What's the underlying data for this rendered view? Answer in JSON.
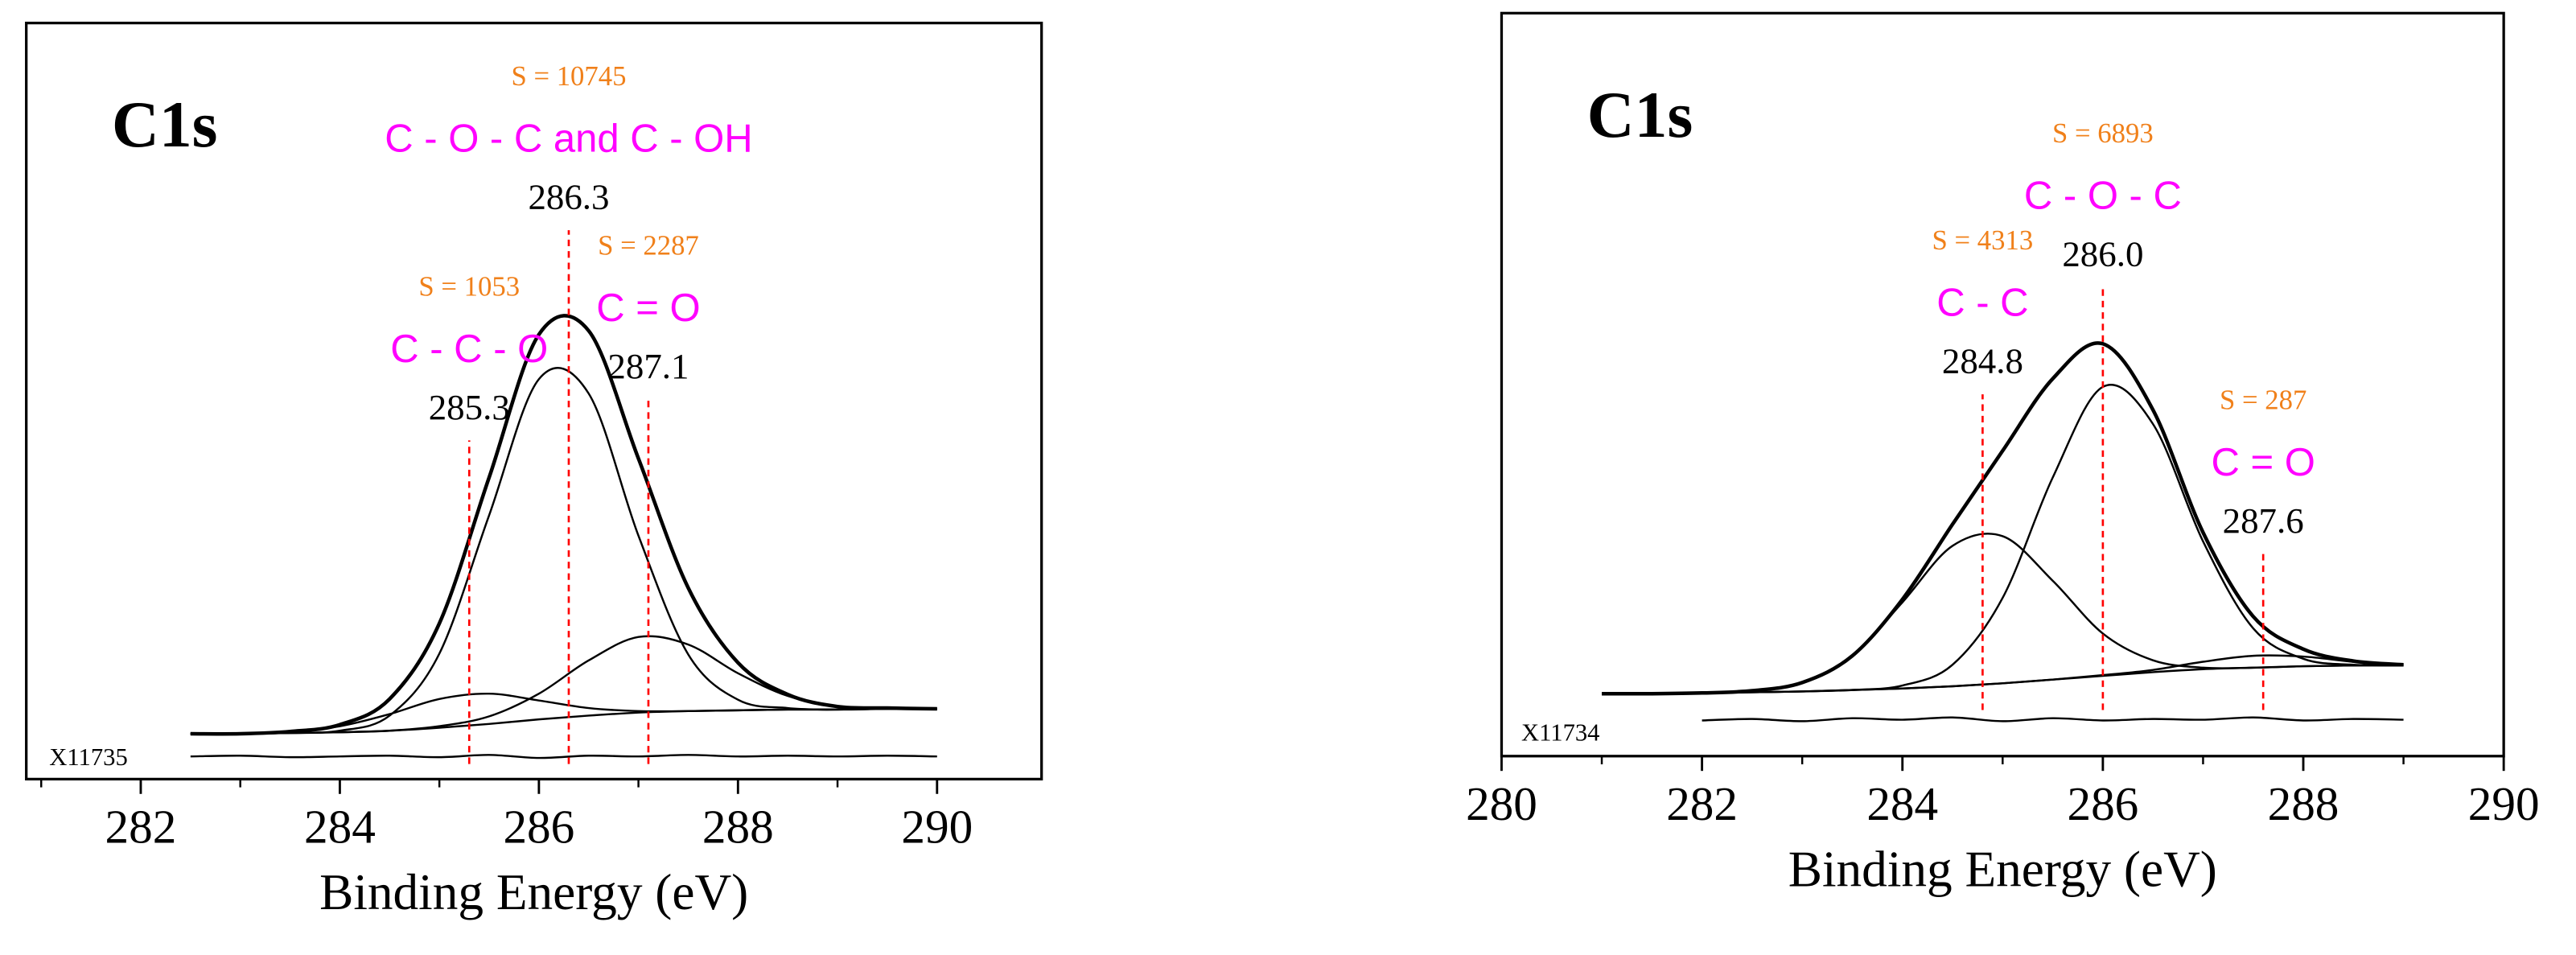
{
  "chart_data": [
    {
      "type": "line",
      "title": "C1s",
      "xlabel": "Binding Energy (eV)",
      "sample": "X11735",
      "xlim": [
        280.85,
        291.05
      ],
      "ylim": [
        0,
        100
      ],
      "xticks": [
        282,
        284,
        286,
        288,
        290
      ],
      "xminorticks": [
        281,
        283,
        285,
        287,
        289
      ],
      "x": [
        282.5,
        283,
        283.5,
        284,
        284.5,
        285,
        285.5,
        286,
        286.5,
        287,
        287.5,
        288,
        288.5,
        289,
        289.5,
        290
      ],
      "series": [
        {
          "color": "#000000",
          "values": [
            6.0,
            6.0,
            6.3,
            7.2,
            10.6,
            20.6,
            39.9,
            58.8,
            59.3,
            42.4,
            25.3,
            15.4,
            11.2,
            9.6,
            9.4,
            9.3
          ]
        },
        {
          "color": "#000000",
          "values": [
            6.0,
            6.0,
            6.1,
            6.4,
            8.4,
            16.6,
            34.9,
            52.9,
            51.0,
            32.2,
            16.5,
            10.5,
            9.4,
            9.2,
            9.3,
            9.3
          ]
        },
        {
          "color": "#000000",
          "values": [
            6.0,
            6.0,
            6.3,
            7.0,
            8.6,
            10.6,
            11.3,
            10.4,
            9.4,
            9.0,
            9.0,
            9.1,
            9.2,
            9.2,
            9.3,
            9.3
          ]
        },
        {
          "color": "#000000",
          "values": [
            6.0,
            6.0,
            6.1,
            6.2,
            6.4,
            7.0,
            8.3,
            11.3,
            15.7,
            18.8,
            17.8,
            14.0,
            11.0,
            9.6,
            9.4,
            9.3
          ]
        },
        {
          "color": "#000000",
          "values": [
            6.0,
            6.0,
            6.1,
            6.2,
            6.4,
            6.8,
            7.3,
            7.9,
            8.4,
            8.8,
            9.0,
            9.1,
            9.2,
            9.2,
            9.3,
            9.3
          ]
        },
        {
          "color": "#000000",
          "values": [
            3.0,
            3.1,
            2.9,
            3.0,
            3.1,
            2.9,
            3.2,
            2.8,
            3.1,
            3.0,
            3.2,
            3.0,
            3.1,
            3.0,
            3.1,
            3.0
          ]
        }
      ],
      "annotations": [
        {
          "x": 285.3,
          "y": [
            2.0,
            44.8
          ],
          "area": "S = 1053",
          "group": "C - C - O",
          "label": "285.3"
        },
        {
          "x": 286.3,
          "y": [
            2.0,
            72.6
          ],
          "area": "S = 10745",
          "group": "C - O - C and C - OH",
          "label": "286.3"
        },
        {
          "x": 287.1,
          "y": [
            2.0,
            50.2
          ],
          "area": "S = 2287",
          "group": "C = O",
          "label": "287.1"
        }
      ],
      "annotation_color": "#ff0000"
    },
    {
      "type": "line",
      "title": "C1s",
      "xlabel": "Binding Energy (eV)",
      "sample": "X11734",
      "xlim": [
        280,
        290
      ],
      "ylim": [
        0,
        100
      ],
      "xticks": [
        280,
        282,
        284,
        286,
        288,
        290
      ],
      "xminorticks": [
        281,
        283,
        285,
        287,
        289
      ],
      "x": [
        281,
        281.5,
        282,
        282.5,
        283,
        283.5,
        284,
        284.5,
        285,
        285.5,
        286,
        286.5,
        287,
        287.5,
        288,
        288.5,
        289
      ],
      "series": [
        {
          "color": "#000000",
          "values": [
            8.4,
            8.4,
            8.5,
            8.8,
            9.9,
            13.5,
            21.1,
            31.2,
            41.1,
            50.8,
            55.5,
            46.6,
            30.1,
            18.8,
            14.4,
            12.8,
            12.3
          ]
        },
        {
          "color": "#000000",
          "values": [
            8.4,
            8.4,
            8.5,
            8.8,
            9.9,
            13.5,
            20.7,
            28.3,
            29.6,
            23.6,
            16.5,
            12.9,
            11.9,
            11.9,
            12.1,
            12.2,
            12.2
          ]
        },
        {
          "color": "#000000",
          "values": [
            8.4,
            8.4,
            8.5,
            8.6,
            8.7,
            8.9,
            9.5,
            12.3,
            21.3,
            37.5,
            49.7,
            44.7,
            28.9,
            17.2,
            13.1,
            12.3,
            12.2
          ]
        },
        {
          "color": "#000000",
          "values": [
            8.4,
            8.4,
            8.5,
            8.6,
            8.7,
            8.9,
            9.1,
            9.4,
            9.8,
            10.3,
            10.9,
            11.6,
            12.7,
            13.5,
            13.4,
            12.7,
            12.3
          ]
        },
        {
          "color": "#000000",
          "values": [
            8.4,
            8.4,
            8.5,
            8.6,
            8.7,
            8.9,
            9.1,
            9.4,
            9.8,
            10.3,
            10.8,
            11.3,
            11.7,
            11.9,
            12.1,
            12.2,
            12.2
          ]
        },
        {
          "color": "#000000",
          "values": [
            null,
            null,
            4.8,
            5.0,
            4.7,
            5.1,
            4.9,
            5.2,
            4.7,
            5.1,
            4.8,
            5.0,
            4.9,
            5.2,
            4.8,
            5.0,
            4.9
          ]
        }
      ],
      "annotations": [
        {
          "x": 284.8,
          "y": [
            6.2,
            48.7
          ],
          "area": "S = 4313",
          "group": "C - C",
          "label": "284.8"
        },
        {
          "x": 286.0,
          "y": [
            6.2,
            63.1
          ],
          "area": "S = 6893",
          "group": "C - O - C",
          "label": "286.0"
        },
        {
          "x": 287.6,
          "y": [
            6.2,
            27.2
          ],
          "area": "S = 287",
          "group": "C = O",
          "label": "287.6"
        }
      ],
      "annotation_color": "#ff0000"
    }
  ]
}
